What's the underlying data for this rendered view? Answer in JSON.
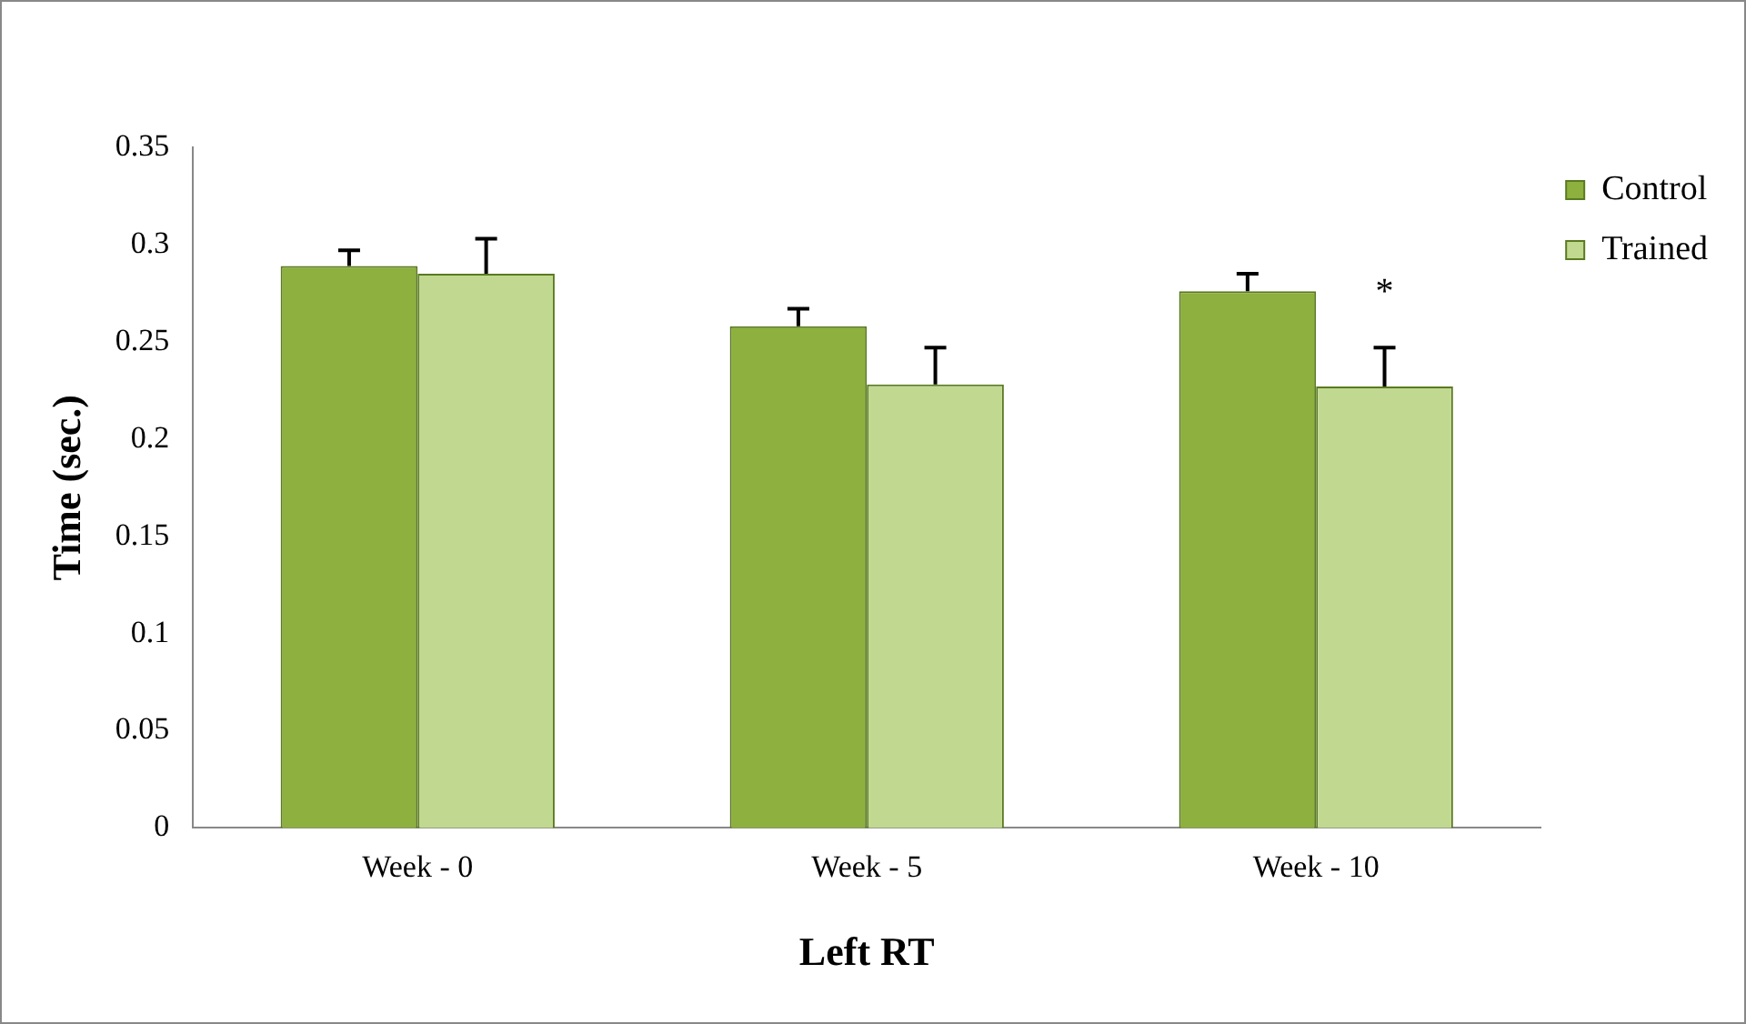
{
  "chart_data": {
    "type": "bar",
    "xlabel": "Left RT",
    "ylabel": "Time (sec.)",
    "categories": [
      "Week - 0",
      "Week - 5",
      "Week - 10"
    ],
    "series": [
      {
        "name": "Control",
        "color": "#8db03e",
        "values": [
          0.289,
          0.258,
          0.276
        ],
        "errors": [
          [
            0.289,
            0.297
          ],
          [
            0.258,
            0.267
          ],
          [
            0.276,
            0.285
          ]
        ]
      },
      {
        "name": "Trained",
        "color": "#c0d890",
        "values": [
          0.285,
          0.228,
          0.227
        ],
        "errors": [
          [
            0.285,
            0.303
          ],
          [
            0.228,
            0.247
          ],
          [
            0.227,
            0.247
          ]
        ]
      }
    ],
    "ylim": [
      0,
      0.35
    ],
    "yticks": [
      0,
      0.05,
      0.1,
      0.15,
      0.2,
      0.25,
      0.3,
      0.35
    ],
    "annotations": [
      {
        "text": "*",
        "x": "Week - 10",
        "y": 0.275
      }
    ],
    "grid": false,
    "legend": "top right"
  }
}
